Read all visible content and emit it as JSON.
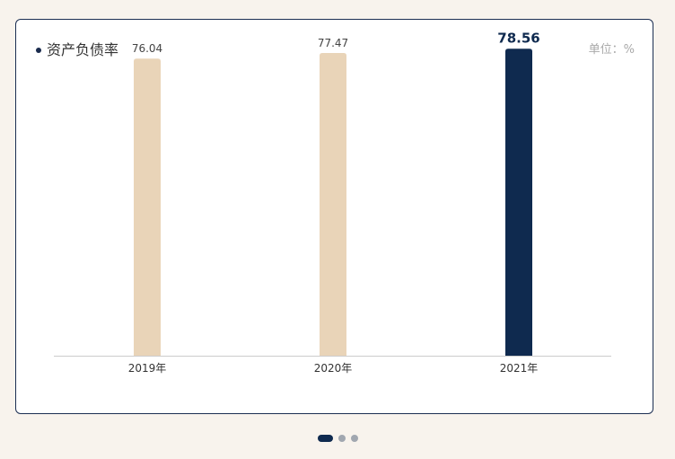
{
  "title": "资产负债率",
  "unit_label": "单位：%",
  "colors": {
    "accent": "#0f2a4f",
    "bar": "#e9d4b8",
    "axis": "#cccccc"
  },
  "chart_data": {
    "type": "bar",
    "categories": [
      "2019年",
      "2020年",
      "2021年"
    ],
    "values": [
      76.04,
      77.47,
      78.56
    ],
    "value_labels": [
      "76.04",
      "77.47",
      "78.56"
    ],
    "highlight_index": 2,
    "title": "资产负债率",
    "xlabel": "",
    "ylabel": "",
    "ylim": [
      0,
      80
    ],
    "grid": false
  },
  "pagination": {
    "count": 3,
    "active_index": 0
  }
}
